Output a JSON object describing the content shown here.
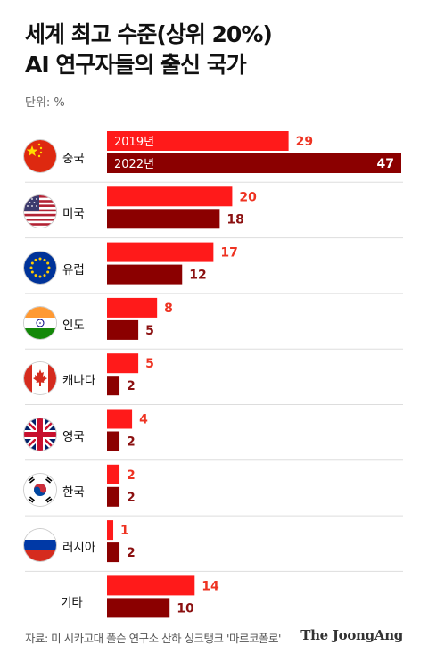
{
  "title_line1": "세계 최고 수준(상위 20%)",
  "title_line2": "AI 연구자들의 출신 국가",
  "unit": "단위: %",
  "source": "자료: 미 시카고대 폴슨 연구소 산하 싱크탱크 '마르코폴로'",
  "brand": "The JoongAng",
  "colors": {
    "y2019": "#ff1a1a",
    "y2022": "#8b0000",
    "value2019": "#ee3322",
    "value2022": "#8b1010",
    "separator": "#dddddd"
  },
  "chart_data": {
    "type": "bar",
    "orientation": "horizontal",
    "categories": [
      "중국",
      "미국",
      "유럽",
      "인도",
      "캐나다",
      "영국",
      "한국",
      "러시아",
      "기타"
    ],
    "flags": [
      "china-flag-icon",
      "usa-flag-icon",
      "eu-flag-icon",
      "india-flag-icon",
      "canada-flag-icon",
      "uk-flag-icon",
      "korea-flag-icon",
      "russia-flag-icon",
      ""
    ],
    "series": [
      {
        "name": "2019년",
        "values": [
          29,
          20,
          17,
          8,
          5,
          4,
          2,
          1,
          14
        ]
      },
      {
        "name": "2022년",
        "values": [
          47,
          18,
          12,
          5,
          2,
          2,
          2,
          2,
          10
        ]
      }
    ],
    "unit": "%",
    "xlim": [
      0,
      47
    ]
  }
}
